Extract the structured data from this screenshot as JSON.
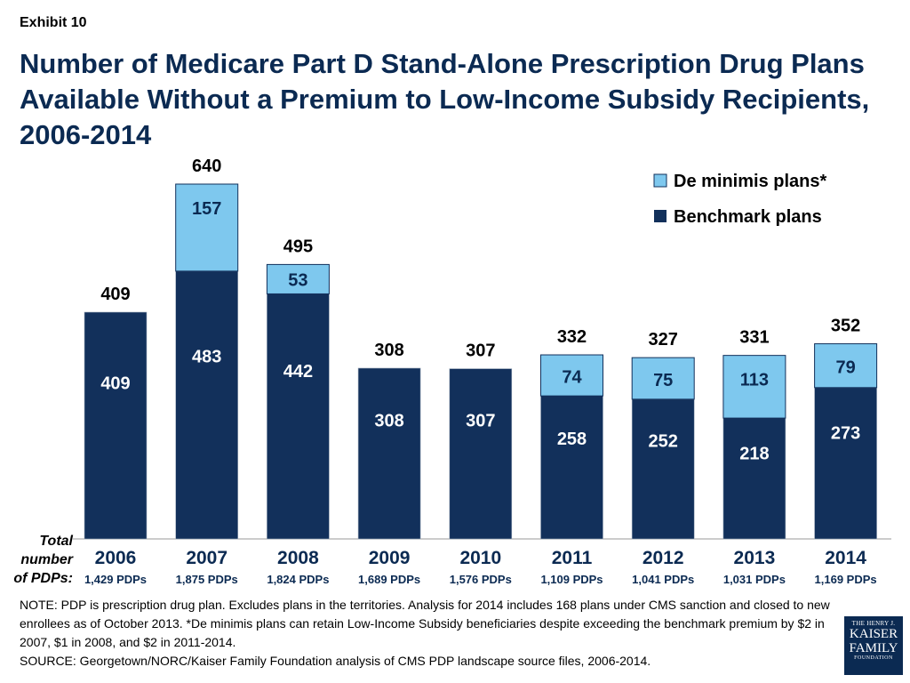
{
  "exhibit": "Exhibit 10",
  "title": "Number of Medicare Part D Stand-Alone Prescription Drug Plans Available Without a Premium to Low-Income Subsidy Recipients, 2006-2014",
  "total_label": "Total number of PDPs:",
  "note": "NOTE: PDP is prescription drug plan.  Excludes plans in the territories. Analysis for 2014 includes 168 plans under CMS sanction and closed to new enrollees as of October 2013. *De minimis plans can retain Low-Income Subsidy beneficiaries despite exceeding the benchmark premium by $2 in 2007, $1 in 2008, and $2 in 2011-2014.",
  "source": "SOURCE: Georgetown/NORC/Kaiser Family Foundation analysis of CMS PDP landscape source files, 2006-2014.",
  "logo": {
    "line1": "THE HENRY J.",
    "line2": "KAISER",
    "line3": "FAMILY",
    "line4": "FOUNDATION"
  },
  "colors": {
    "benchmark": "#12305b",
    "deminimis": "#7ec8ee",
    "title": "#0b2a52"
  },
  "chart_data": {
    "type": "bar",
    "stacked": true,
    "categories": [
      "2006",
      "2007",
      "2008",
      "2009",
      "2010",
      "2011",
      "2012",
      "2013",
      "2014"
    ],
    "series": [
      {
        "name": "Benchmark plans",
        "values": [
          409,
          483,
          442,
          308,
          307,
          258,
          252,
          218,
          273
        ]
      },
      {
        "name": "De minimis plans*",
        "values": [
          0,
          157,
          53,
          0,
          0,
          74,
          75,
          113,
          79
        ]
      }
    ],
    "totals": [
      409,
      640,
      495,
      308,
      307,
      332,
      327,
      331,
      352
    ],
    "total_pdps": [
      "1,429 PDPs",
      "1,875 PDPs",
      "1,824 PDPs",
      "1,689 PDPs",
      "1,576 PDPs",
      "1,109 PDPs",
      "1,041 PDPs",
      "1,031 PDPs",
      "1,169 PDPs"
    ],
    "legend": [
      "De minimis plans*",
      "Benchmark plans"
    ],
    "legend_position": "top-right",
    "ylim": [
      0,
      640
    ],
    "grid": false
  }
}
